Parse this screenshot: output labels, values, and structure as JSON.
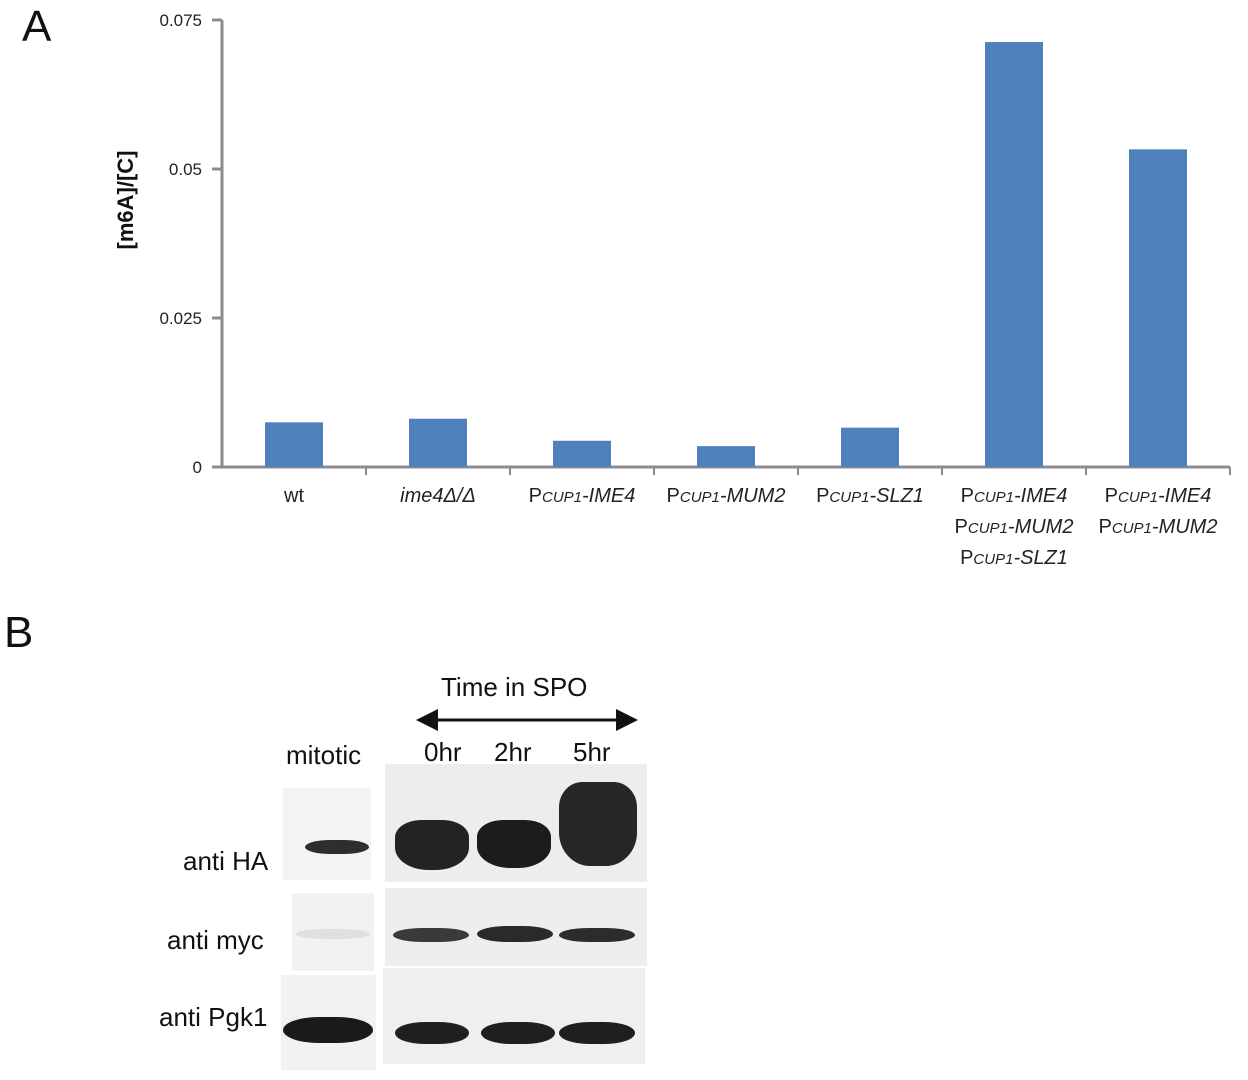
{
  "panel_a": {
    "letter": "A"
  },
  "panel_b": {
    "letter": "B"
  },
  "chart_data": {
    "type": "bar",
    "ylabel": "[m6A]/[C]",
    "ylim": [
      0,
      0.075
    ],
    "yticks": [
      "0",
      "0.025",
      "0.05",
      "0.075"
    ],
    "ytick_values": [
      0,
      0.025,
      0.05,
      0.075
    ],
    "color": "#4f81bd",
    "categories": [
      {
        "lines": [
          [
            {
              "t": "wt",
              "i": false
            }
          ]
        ]
      },
      {
        "lines": [
          [
            {
              "t": "ime4Δ/Δ",
              "i": true
            }
          ]
        ]
      },
      {
        "lines": [
          [
            {
              "t": "P",
              "i": false
            },
            {
              "t": "CUP1",
              "i": true,
              "sc": true
            },
            {
              "t": "-IME4",
              "i": true
            }
          ]
        ]
      },
      {
        "lines": [
          [
            {
              "t": "P",
              "i": false
            },
            {
              "t": "CUP1",
              "i": true,
              "sc": true
            },
            {
              "t": "-MUM2",
              "i": true
            }
          ]
        ]
      },
      {
        "lines": [
          [
            {
              "t": "P",
              "i": false
            },
            {
              "t": "CUP1",
              "i": true,
              "sc": true
            },
            {
              "t": "-SLZ1",
              "i": true
            }
          ]
        ]
      },
      {
        "lines": [
          [
            {
              "t": "P",
              "i": false
            },
            {
              "t": "CUP1",
              "i": true,
              "sc": true
            },
            {
              "t": "-IME4",
              "i": true
            }
          ],
          [
            {
              "t": "P",
              "i": false
            },
            {
              "t": "CUP1",
              "i": true,
              "sc": true
            },
            {
              "t": "-MUM2",
              "i": true
            }
          ],
          [
            {
              "t": "P",
              "i": false
            },
            {
              "t": "CUP1",
              "i": true,
              "sc": true
            },
            {
              "t": "-SLZ1",
              "i": true
            }
          ]
        ]
      },
      {
        "lines": [
          [
            {
              "t": "P",
              "i": false
            },
            {
              "t": "CUP1",
              "i": true,
              "sc": true
            },
            {
              "t": "-IME4",
              "i": true
            }
          ],
          [
            {
              "t": "P",
              "i": false
            },
            {
              "t": "CUP1",
              "i": true,
              "sc": true
            },
            {
              "t": "-MUM2",
              "i": true
            }
          ]
        ]
      }
    ],
    "values": [
      0.0075,
      0.0081,
      0.0044,
      0.0035,
      0.0066,
      0.0713,
      0.0533
    ],
    "legend": "none",
    "grid": false
  },
  "blot": {
    "time_header": "Time in SPO",
    "lane_mitotic": "mitotic",
    "lanes": [
      "0hr",
      "2hr",
      "5hr"
    ],
    "rows": [
      {
        "label": "anti HA"
      },
      {
        "label": "anti myc"
      },
      {
        "label": "anti Pgk1"
      }
    ]
  }
}
